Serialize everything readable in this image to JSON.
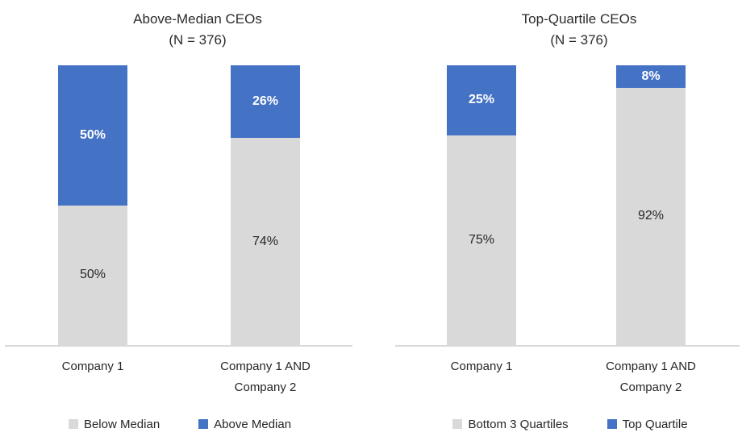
{
  "chart_data": [
    {
      "type": "bar",
      "stacked": true,
      "title": "Above-Median CEOs",
      "subtitle": "(N = 376)",
      "categories": [
        "Company 1",
        "Company 1 AND\nCompany 2"
      ],
      "series": [
        {
          "name": "Below Median",
          "color": "#d9d9d9",
          "values": [
            50,
            74
          ],
          "labels": [
            "50%",
            "74%"
          ],
          "label_color": "#262626"
        },
        {
          "name": "Above Median",
          "color": "#4472c4",
          "values": [
            50,
            26
          ],
          "labels": [
            "50%",
            "26%"
          ],
          "label_color": "#ffffff"
        }
      ],
      "ylim": [
        0,
        100
      ],
      "unit": "percent",
      "gridlines": false,
      "legend_position": "bottom"
    },
    {
      "type": "bar",
      "stacked": true,
      "title": "Top-Quartile CEOs",
      "subtitle": "(N = 376)",
      "categories": [
        "Company 1",
        "Company 1 AND\nCompany 2"
      ],
      "series": [
        {
          "name": "Bottom 3 Quartiles",
          "color": "#d9d9d9",
          "values": [
            75,
            92
          ],
          "labels": [
            "75%",
            "92%"
          ],
          "label_color": "#262626"
        },
        {
          "name": "Top Quartile",
          "color": "#4472c4",
          "values": [
            25,
            8
          ],
          "labels": [
            "25%",
            "8%"
          ],
          "label_color": "#ffffff"
        }
      ],
      "ylim": [
        0,
        100
      ],
      "unit": "percent",
      "gridlines": false,
      "legend_position": "bottom"
    }
  ],
  "colors": {
    "bar_blue": "#4472c4",
    "bar_gray": "#d9d9d9",
    "axis_line": "#d9d9d9",
    "text": "#262626"
  }
}
